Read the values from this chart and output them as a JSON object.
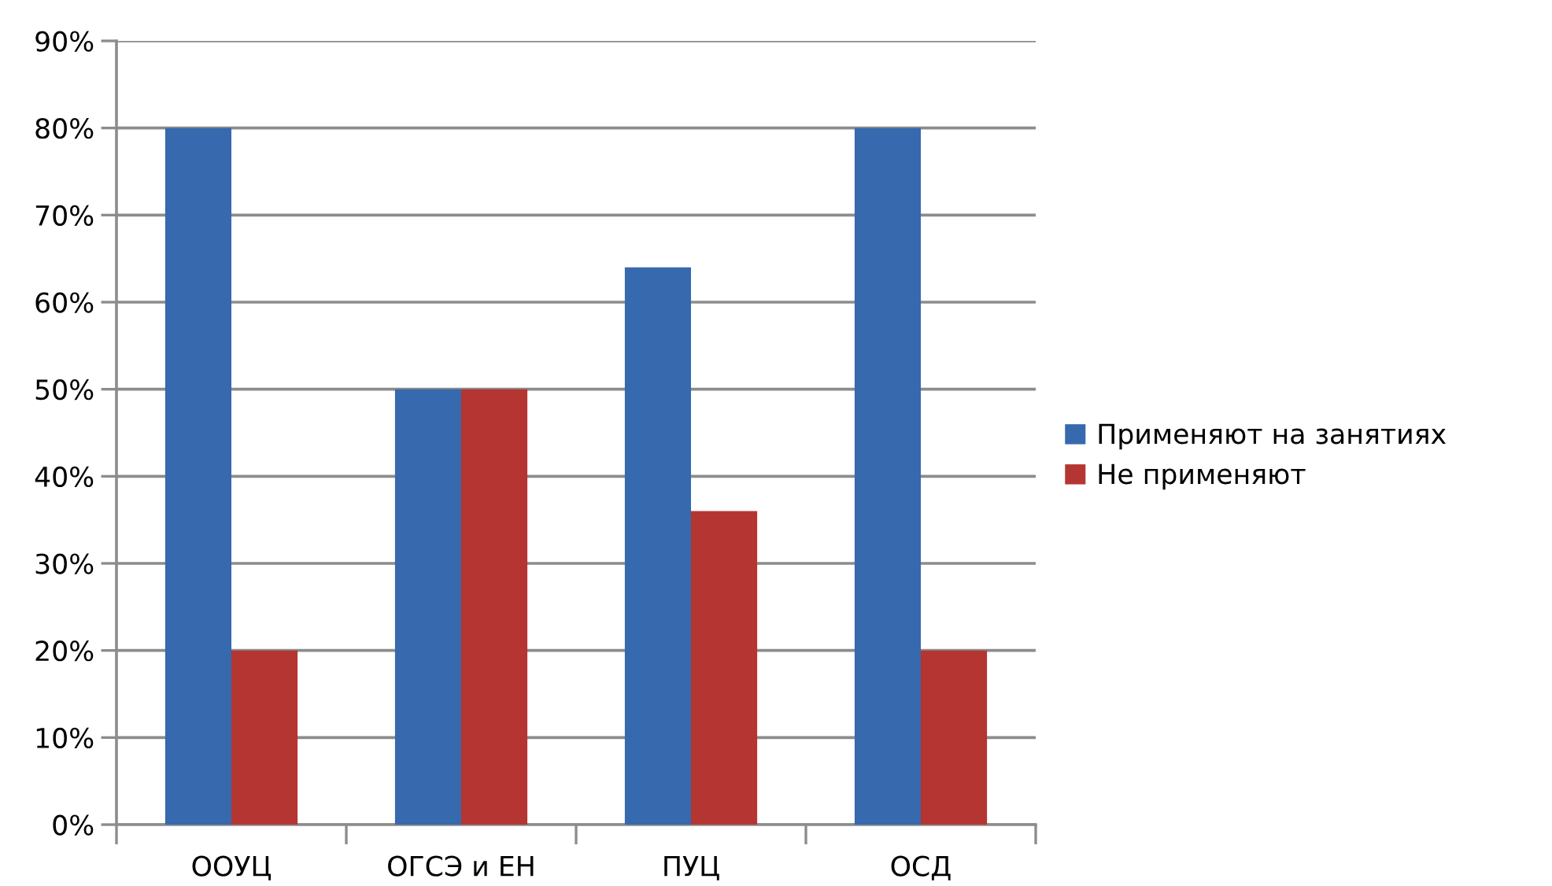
{
  "chart_data": {
    "type": "bar",
    "categories": [
      "ООУЦ",
      "ОГСЭ и ЕН",
      "ПУЦ",
      "ОСД"
    ],
    "series": [
      {
        "name": "Применяют на занятиях",
        "color": "#3669ad",
        "values": [
          80,
          50,
          64,
          80
        ]
      },
      {
        "name": "Не применяют",
        "color": "#b53532",
        "values": [
          20,
          50,
          36,
          20
        ]
      }
    ],
    "ylim": [
      0,
      90
    ],
    "yticks": [
      {
        "value": 0,
        "label": "0%"
      },
      {
        "value": 10,
        "label": "10%"
      },
      {
        "value": 20,
        "label": "20%"
      },
      {
        "value": 30,
        "label": "30%"
      },
      {
        "value": 40,
        "label": "40%"
      },
      {
        "value": 50,
        "label": "50%"
      },
      {
        "value": 60,
        "label": "60%"
      },
      {
        "value": 70,
        "label": "70%"
      },
      {
        "value": 80,
        "label": "80%"
      },
      {
        "value": 90,
        "label": "90%"
      }
    ],
    "grid": "y",
    "legend": "right"
  }
}
